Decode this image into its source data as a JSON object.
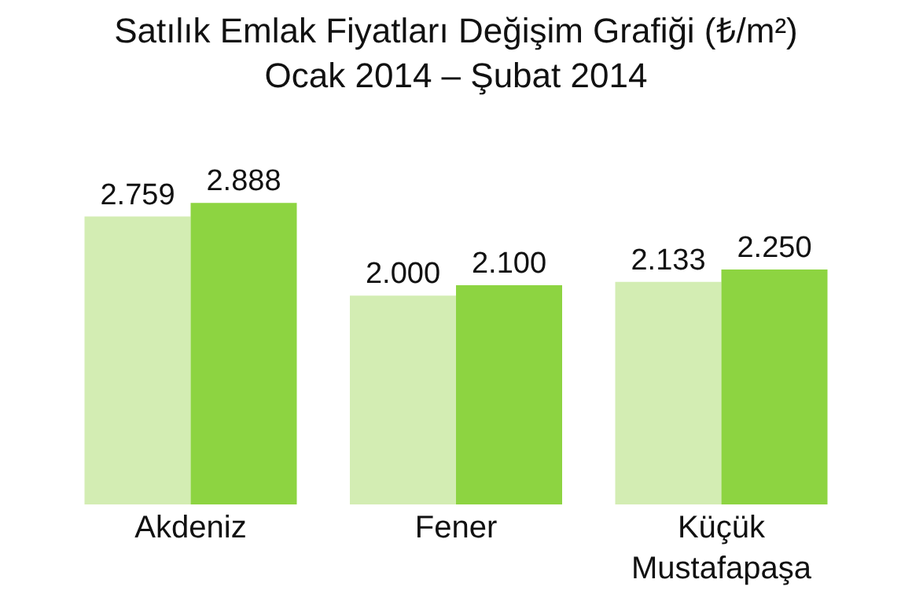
{
  "chart_data": {
    "type": "bar",
    "title": "Satılık Emlak Fiyatları Değişim Grafiği (₺/m²)",
    "subtitle": "Ocak 2014 – Şubat 2014",
    "categories": [
      "Akdeniz",
      "Fener",
      "Küçük Mustafapaşa"
    ],
    "series": [
      {
        "color": "#d3edb3",
        "values": [
          2759,
          2000,
          2133
        ],
        "value_labels": [
          "2.759",
          "2.000",
          "2.133"
        ]
      },
      {
        "color": "#8dd441",
        "values": [
          2888,
          2100,
          2250
        ],
        "value_labels": [
          "2.888",
          "2.100",
          "2.250"
        ]
      }
    ],
    "legend": false
  }
}
